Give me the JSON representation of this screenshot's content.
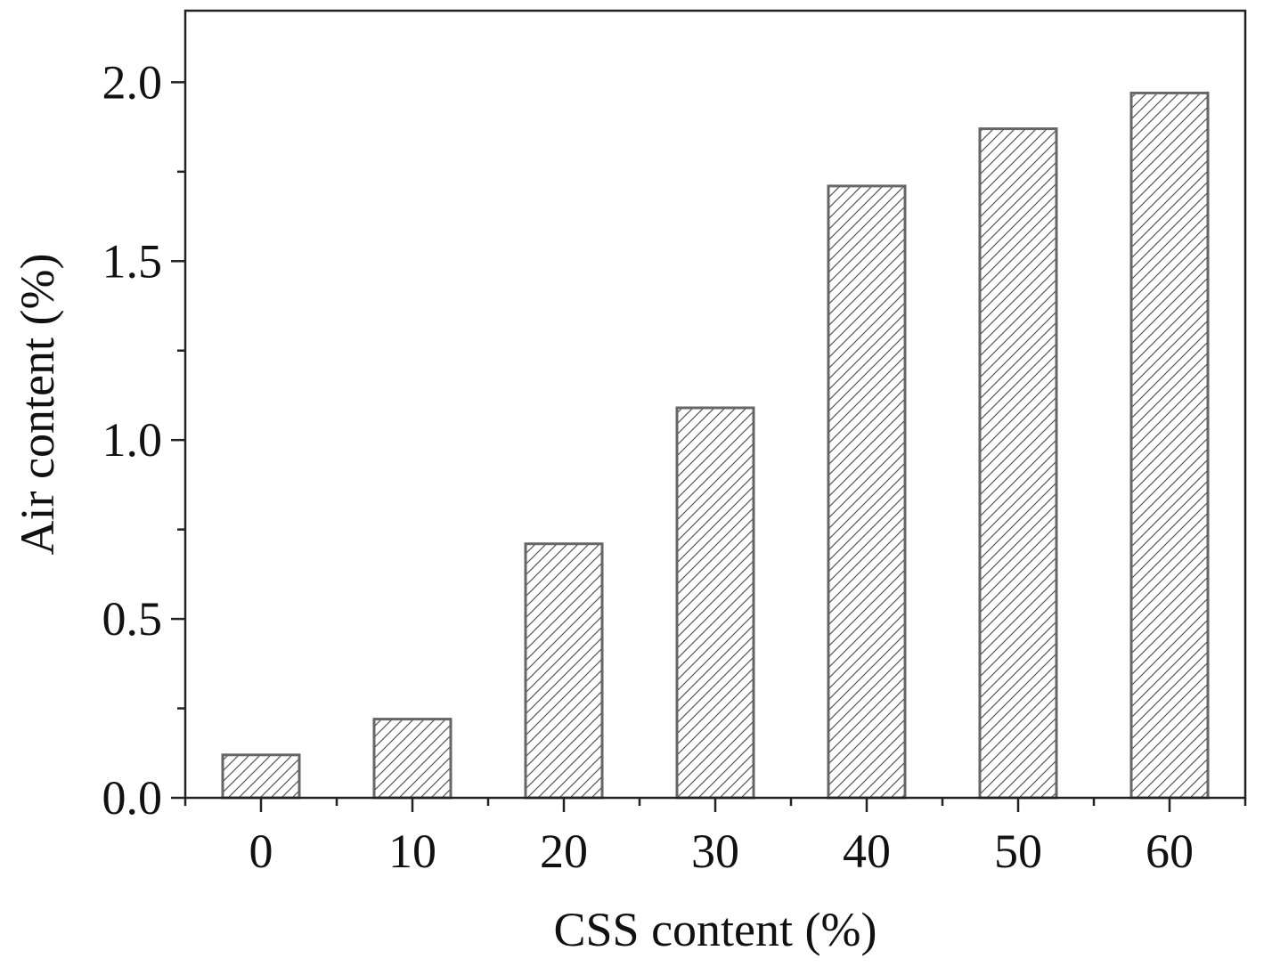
{
  "chart_data": {
    "type": "bar",
    "title": "",
    "xlabel": "CSS content (%)",
    "ylabel": "Air content (%)",
    "categories": [
      "0",
      "10",
      "20",
      "30",
      "40",
      "50",
      "60"
    ],
    "values": [
      0.12,
      0.22,
      0.71,
      1.09,
      1.71,
      1.87,
      1.97
    ],
    "ylim": [
      0,
      2.2
    ],
    "yticks": [
      "0.0",
      "0.5",
      "1.0",
      "1.5",
      "2.0"
    ],
    "grid": false,
    "legend": "none",
    "bar_fill": "#ffffff",
    "bar_stroke": "#666666",
    "hatch_color": "#555555"
  }
}
